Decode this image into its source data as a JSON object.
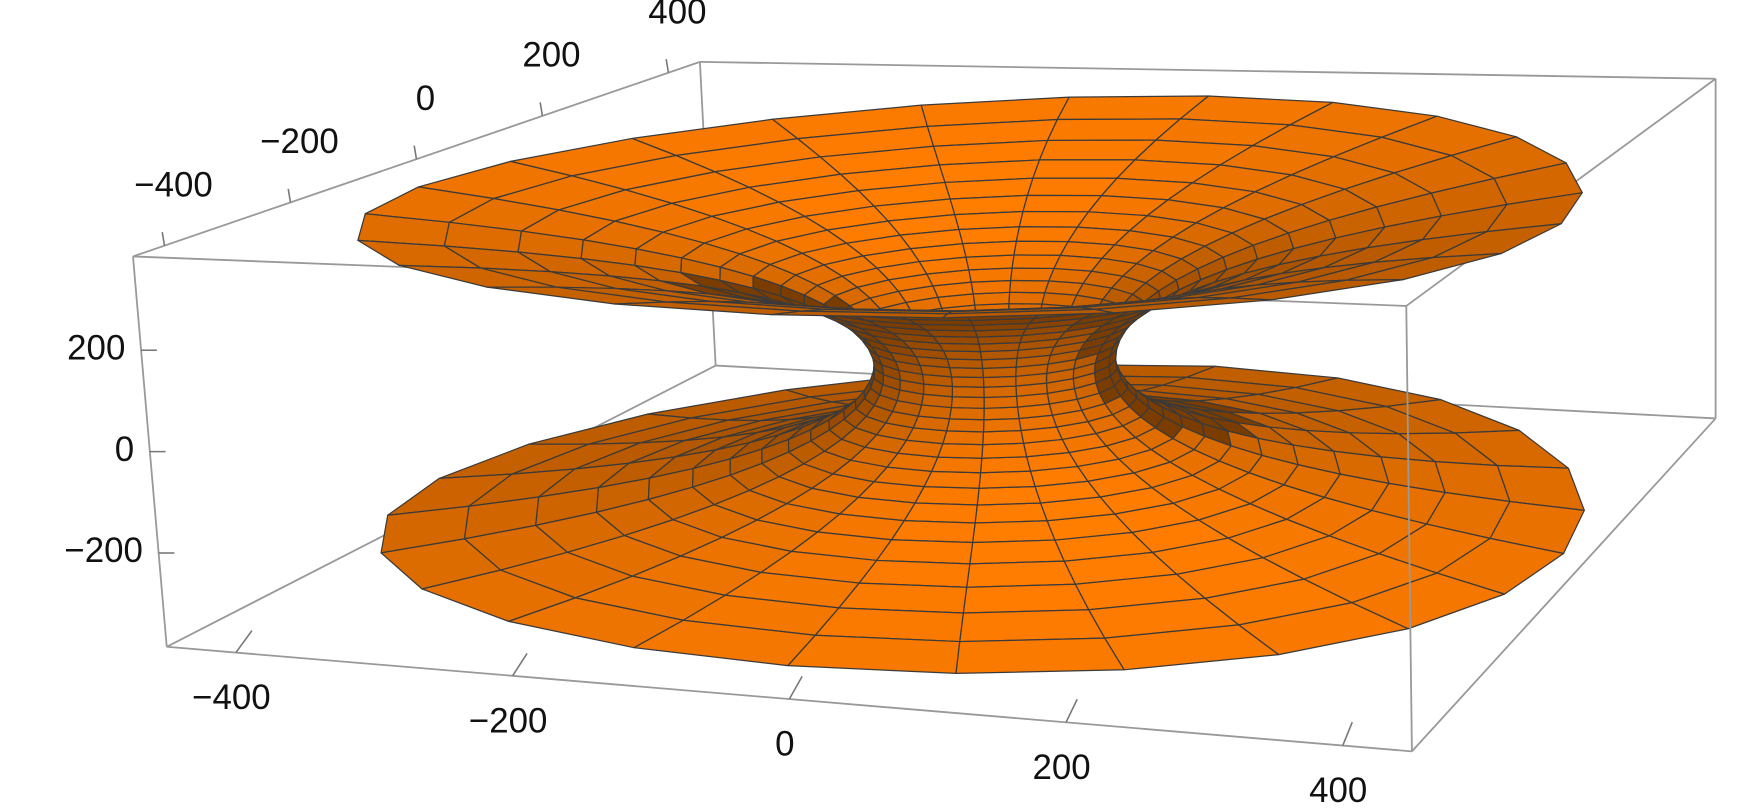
{
  "chart_data": {
    "type": "surface",
    "xlim": [
      -450,
      450
    ],
    "ylim": [
      -450,
      450
    ],
    "zlim": [
      -385,
      385
    ],
    "xticks": [
      {
        "value": -400,
        "label": "−400"
      },
      {
        "value": -200,
        "label": "−200"
      },
      0,
      200,
      400
    ],
    "yticks": [
      {
        "value": -400,
        "label": "−400"
      },
      {
        "value": -200,
        "label": "−200"
      },
      0,
      200,
      400
    ],
    "zticks": [
      {
        "value": -200,
        "label": "−200"
      },
      0,
      200
    ],
    "color": "#f67800"
  }
}
